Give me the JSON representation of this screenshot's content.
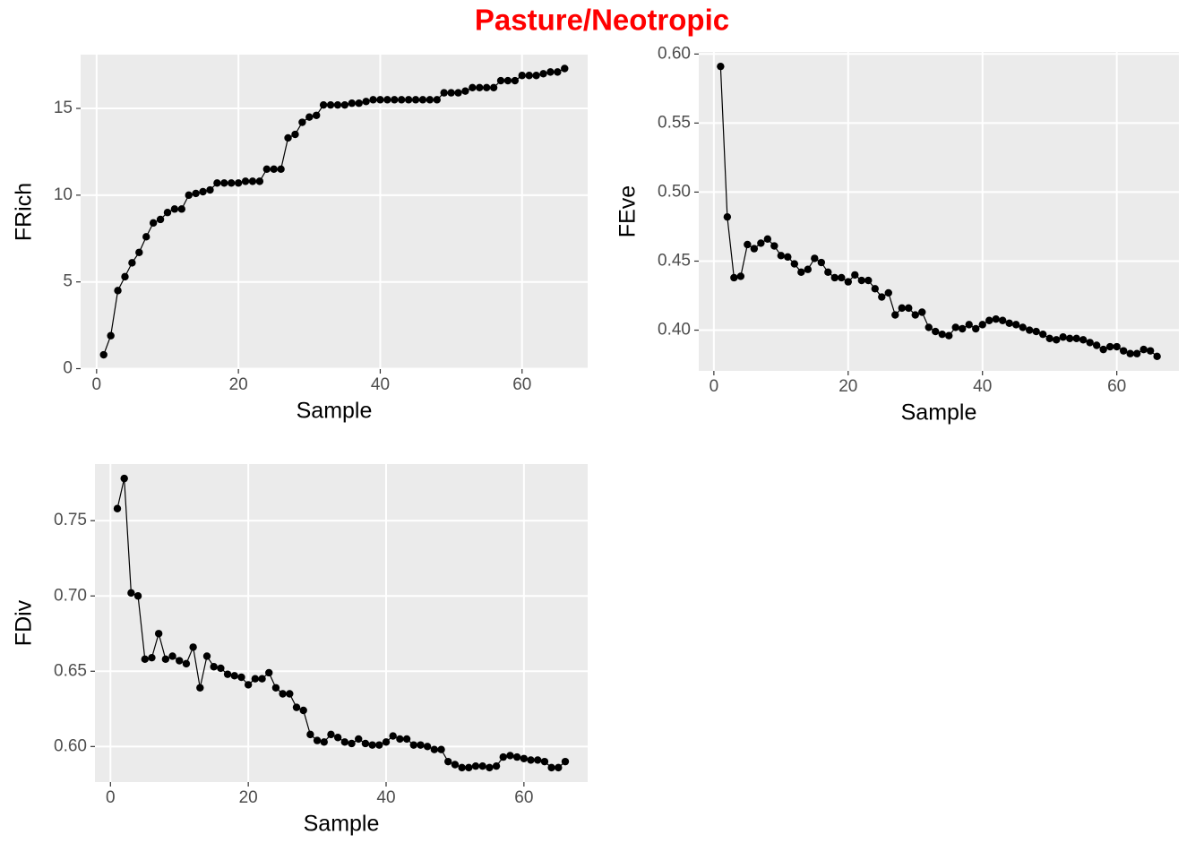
{
  "title": "Pasture/Neotropic",
  "chart_data": [
    {
      "type": "line",
      "xlabel": "Sample",
      "ylabel": "FRich",
      "color": "#000000",
      "grid": true,
      "x": [
        1,
        2,
        3,
        4,
        5,
        6,
        7,
        8,
        9,
        10,
        11,
        12,
        13,
        14,
        15,
        16,
        17,
        18,
        19,
        20,
        21,
        22,
        23,
        24,
        25,
        26,
        27,
        28,
        29,
        30,
        31,
        32,
        33,
        34,
        35,
        36,
        37,
        38,
        39,
        40,
        41,
        42,
        43,
        44,
        45,
        46,
        47,
        48,
        49,
        50,
        51,
        52,
        53,
        54,
        55,
        56,
        57,
        58,
        59,
        60,
        61,
        62,
        63,
        64,
        65,
        66
      ],
      "values": [
        0.8,
        1.9,
        4.5,
        5.3,
        6.1,
        6.7,
        7.6,
        8.4,
        8.6,
        9.0,
        9.2,
        9.2,
        10.0,
        10.1,
        10.2,
        10.3,
        10.7,
        10.7,
        10.7,
        10.7,
        10.8,
        10.8,
        10.8,
        11.5,
        11.5,
        11.5,
        13.3,
        13.5,
        14.2,
        14.5,
        14.6,
        15.2,
        15.2,
        15.2,
        15.2,
        15.3,
        15.3,
        15.4,
        15.5,
        15.5,
        15.5,
        15.5,
        15.5,
        15.5,
        15.5,
        15.5,
        15.5,
        15.5,
        15.9,
        15.9,
        15.9,
        16.0,
        16.2,
        16.2,
        16.2,
        16.2,
        16.6,
        16.6,
        16.6,
        16.9,
        16.9,
        16.9,
        17.0,
        17.1,
        17.1,
        17.3
      ],
      "xlim": [
        -2.25,
        69.25
      ],
      "xticks": [
        0,
        20,
        40,
        60
      ],
      "ylim": [
        -0.025,
        18.1
      ],
      "yticks": [
        0,
        5,
        10,
        15
      ]
    },
    {
      "type": "line",
      "xlabel": "Sample",
      "ylabel": "FEve",
      "color": "#000000",
      "grid": true,
      "x": [
        1,
        2,
        3,
        4,
        5,
        6,
        7,
        8,
        9,
        10,
        11,
        12,
        13,
        14,
        15,
        16,
        17,
        18,
        19,
        20,
        21,
        22,
        23,
        24,
        25,
        26,
        27,
        28,
        29,
        30,
        31,
        32,
        33,
        34,
        35,
        36,
        37,
        38,
        39,
        40,
        41,
        42,
        43,
        44,
        45,
        46,
        47,
        48,
        49,
        50,
        51,
        52,
        53,
        54,
        55,
        56,
        57,
        58,
        59,
        60,
        61,
        62,
        63,
        64,
        65,
        66
      ],
      "values": [
        0.591,
        0.482,
        0.438,
        0.439,
        0.462,
        0.459,
        0.463,
        0.466,
        0.461,
        0.454,
        0.453,
        0.448,
        0.442,
        0.444,
        0.452,
        0.449,
        0.442,
        0.438,
        0.438,
        0.435,
        0.44,
        0.436,
        0.436,
        0.43,
        0.424,
        0.427,
        0.411,
        0.416,
        0.416,
        0.411,
        0.413,
        0.402,
        0.399,
        0.397,
        0.396,
        0.402,
        0.401,
        0.404,
        0.401,
        0.404,
        0.407,
        0.408,
        0.407,
        0.405,
        0.404,
        0.402,
        0.4,
        0.399,
        0.397,
        0.394,
        0.393,
        0.395,
        0.394,
        0.394,
        0.393,
        0.391,
        0.389,
        0.386,
        0.388,
        0.388,
        0.385,
        0.383,
        0.383,
        0.386,
        0.385,
        0.381
      ],
      "xlim": [
        -2.25,
        69.25
      ],
      "xticks": [
        0,
        20,
        40,
        60
      ],
      "ylim": [
        0.3705,
        0.6015
      ],
      "yticks": [
        {
          "value": 0.4,
          "label": "0.40"
        },
        {
          "value": 0.45,
          "label": "0.45"
        },
        {
          "value": 0.5,
          "label": "0.50"
        },
        {
          "value": 0.55,
          "label": "0.55"
        },
        {
          "value": 0.6,
          "label": "0.60"
        }
      ]
    },
    {
      "type": "line",
      "xlabel": "Sample",
      "ylabel": "FDiv",
      "color": "#000000",
      "grid": true,
      "x": [
        1,
        2,
        3,
        4,
        5,
        6,
        7,
        8,
        9,
        10,
        11,
        12,
        13,
        14,
        15,
        16,
        17,
        18,
        19,
        20,
        21,
        22,
        23,
        24,
        25,
        26,
        27,
        28,
        29,
        30,
        31,
        32,
        33,
        34,
        35,
        36,
        37,
        38,
        39,
        40,
        41,
        42,
        43,
        44,
        45,
        46,
        47,
        48,
        49,
        50,
        51,
        52,
        53,
        54,
        55,
        56,
        57,
        58,
        59,
        60,
        61,
        62,
        63,
        64,
        65,
        66
      ],
      "values": [
        0.758,
        0.778,
        0.702,
        0.7,
        0.658,
        0.659,
        0.675,
        0.658,
        0.66,
        0.657,
        0.655,
        0.666,
        0.639,
        0.66,
        0.653,
        0.652,
        0.648,
        0.647,
        0.646,
        0.641,
        0.645,
        0.645,
        0.649,
        0.639,
        0.635,
        0.635,
        0.626,
        0.624,
        0.608,
        0.604,
        0.603,
        0.608,
        0.606,
        0.603,
        0.602,
        0.605,
        0.602,
        0.601,
        0.601,
        0.603,
        0.607,
        0.605,
        0.605,
        0.601,
        0.601,
        0.6,
        0.598,
        0.598,
        0.59,
        0.588,
        0.586,
        0.586,
        0.587,
        0.587,
        0.586,
        0.587,
        0.593,
        0.594,
        0.593,
        0.592,
        0.591,
        0.591,
        0.59,
        0.586,
        0.586,
        0.59
      ],
      "xlim": [
        -2.25,
        69.25
      ],
      "xticks": [
        0,
        20,
        40,
        60
      ],
      "ylim": [
        0.5764,
        0.7876
      ],
      "yticks": [
        {
          "value": 0.6,
          "label": "0.60"
        },
        {
          "value": 0.65,
          "label": "0.65"
        },
        {
          "value": 0.7,
          "label": "0.70"
        },
        {
          "value": 0.75,
          "label": "0.75"
        }
      ]
    }
  ]
}
